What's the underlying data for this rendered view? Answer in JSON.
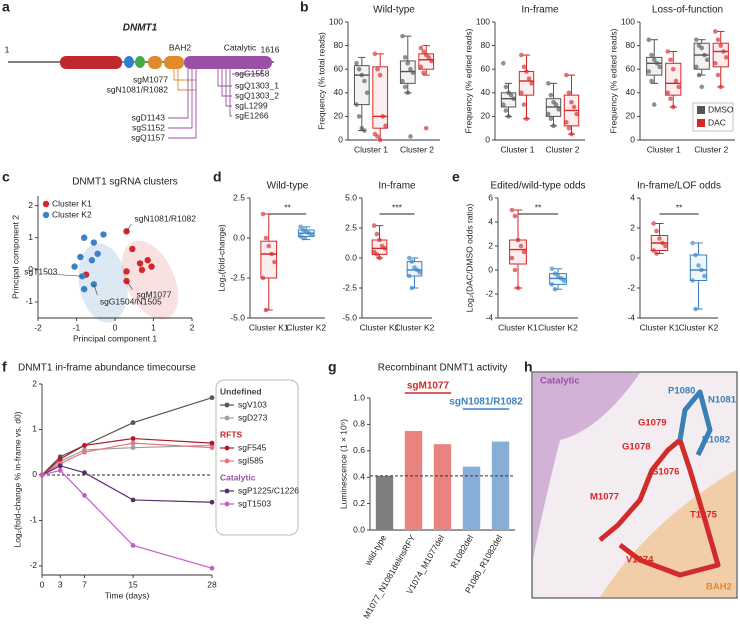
{
  "panel_labels": [
    "a",
    "b",
    "c",
    "d",
    "e",
    "f",
    "g",
    "h"
  ],
  "diagram": {
    "gene": "DNMT1",
    "start": 1,
    "end": 1616,
    "domains": [
      "BAH2",
      "Catalytic"
    ],
    "sgrnas_bah2": [
      "sgM1077",
      "sgN1081/R1082"
    ],
    "sgrnas_left": [
      "sgD1143",
      "sgS1152",
      "sgQ1157"
    ],
    "sgrnas_right": [
      "sgG1558",
      "sgQ1303_1",
      "sgQ1303_2",
      "sgL1299",
      "sgE1266"
    ]
  },
  "chart_data": [
    {
      "type": "box",
      "categories": [
        "Cluster 1",
        "Cluster 2"
      ],
      "series": [
        {
          "name": "DMSO",
          "color": "#555555"
        },
        {
          "name": "DAC",
          "color": "#d62728"
        }
      ],
      "legend": "lower right",
      "panels": [
        {
          "title": "Wild-type",
          "ylabel": "Frequency (% total reads)",
          "ylim": [
            0,
            100
          ],
          "yticks": [
            0,
            20,
            40,
            60,
            80,
            100
          ],
          "boxes": [
            [
              [
                8,
                30,
                55,
                63,
                70
              ],
              [
                40,
                48,
                58,
                67,
                88
              ]
            ],
            [
              [
                0,
                10,
                20,
                62,
                73
              ],
              [
                55,
                60,
                68,
                73,
                80
              ]
            ]
          ],
          "points": [
            [
              [
                65,
                60,
                55,
                50,
                40,
                30,
                20,
                10,
                8
              ],
              [
                88,
                70,
                65,
                60,
                57,
                50,
                45,
                40,
                3
              ]
            ],
            [
              [
                73,
                60,
                55,
                20,
                12,
                5,
                3,
                0
              ],
              [
                78,
                75,
                72,
                70,
                67,
                62,
                57,
                10
              ]
            ]
          ]
        },
        {
          "title": "In-frame",
          "ylabel": "Frequency (% edited reads)",
          "ylim": [
            0,
            100
          ],
          "yticks": [
            0,
            20,
            40,
            60,
            80,
            100
          ],
          "boxes": [
            [
              [
                20,
                28,
                35,
                40,
                48
              ],
              [
                12,
                20,
                28,
                35,
                48
              ]
            ],
            [
              [
                18,
                38,
                50,
                58,
                72
              ],
              [
                5,
                12,
                25,
                38,
                55
              ]
            ]
          ],
          "points": [
            [
              [
                65,
                45,
                40,
                38,
                35,
                30,
                25,
                20
              ],
              [
                48,
                38,
                32,
                30,
                26,
                22,
                18,
                12
              ]
            ],
            [
              [
                72,
                62,
                58,
                52,
                48,
                40,
                30,
                18
              ],
              [
                55,
                40,
                32,
                28,
                22,
                15,
                10,
                5
              ]
            ]
          ]
        },
        {
          "title": "Loss-of-function",
          "ylabel": "Frequency (% edited reads)",
          "ylim": [
            0,
            100
          ],
          "yticks": [
            0,
            20,
            40,
            60,
            80,
            100
          ],
          "boxes": [
            [
              [
                48,
                55,
                65,
                70,
                85
              ],
              [
                55,
                60,
                72,
                82,
                85
              ]
            ],
            [
              [
                28,
                38,
                48,
                65,
                75
              ],
              [
                45,
                62,
                75,
                82,
                92
              ]
            ]
          ],
          "points": [
            [
              [
                85,
                72,
                68,
                65,
                62,
                58,
                50,
                30
              ],
              [
                85,
                80,
                78,
                72,
                68,
                62,
                55,
                45
              ]
            ],
            [
              [
                75,
                68,
                60,
                50,
                45,
                40,
                35,
                28
              ],
              [
                92,
                85,
                80,
                75,
                70,
                65,
                55,
                45
              ]
            ]
          ]
        }
      ]
    },
    {
      "type": "scatter",
      "title": "DNMT1 sgRNA clusters",
      "xlabel": "Principal component 1",
      "ylabel": "Principal component 2",
      "xlim": [
        -2,
        2
      ],
      "xticks": [
        -2,
        -1,
        0,
        1,
        2
      ],
      "ylim": [
        -1.5,
        2.3
      ],
      "yticks": [
        -1,
        0,
        1,
        2
      ],
      "legend": "upper left",
      "series": [
        {
          "name": "Cluster K1",
          "color": "#d62728",
          "x": [
            0.3,
            0.45,
            0.65,
            0.85,
            0.95,
            0.7,
            0.3,
            0.3,
            -0.75
          ],
          "y": [
            1.2,
            0.65,
            0.2,
            0.3,
            0.1,
            0.0,
            -0.05,
            -0.35,
            -0.15
          ],
          "labels": [
            "sgN1081/R1082",
            null,
            null,
            null,
            null,
            null,
            null,
            "sgM1077",
            null
          ]
        },
        {
          "name": "Cluster K2",
          "color": "#3b82c4",
          "x": [
            -0.8,
            -0.55,
            -0.3,
            -0.45,
            -0.9,
            -0.6,
            -1.05,
            -0.85,
            -0.55,
            -0.8
          ],
          "y": [
            1.0,
            0.85,
            1.1,
            0.5,
            0.4,
            0.3,
            0.1,
            -0.2,
            -0.45,
            -0.6
          ],
          "labels": [
            null,
            null,
            null,
            null,
            null,
            null,
            null,
            "sgT1503",
            "sgG1504/N1505",
            null
          ]
        }
      ]
    },
    {
      "type": "box",
      "categories": [
        "Cluster K1",
        "Cluster K2"
      ],
      "colors": [
        "#d62728",
        "#3b82c4"
      ],
      "ylabel": "Log₂(fold-change)",
      "panels": [
        {
          "title": "Wild-type",
          "ylim": [
            -5,
            2.5
          ],
          "yticks": [
            {
              "value": -5,
              "label": "-5.0"
            },
            -2.5,
            {
              "value": 0,
              "label": "0.0"
            },
            2.5
          ],
          "sig": "**",
          "boxes": [
            [
              -4.5,
              -2.5,
              -1,
              -0.2,
              1.5
            ],
            [
              -0.1,
              0.1,
              0.3,
              0.5,
              0.7
            ]
          ],
          "points": [
            [
              1.5,
              0,
              -0.5,
              -1,
              -1.5,
              -2.5,
              -4.5
            ],
            [
              0.7,
              0.5,
              0.4,
              0.3,
              0.2,
              0.1,
              0
            ]
          ]
        },
        {
          "title": "In-frame",
          "ylim": [
            -5,
            5
          ],
          "yticks": [
            {
              "value": -5,
              "label": "-5.0"
            },
            -2.5,
            {
              "value": 0,
              "label": "0.0"
            },
            2.5,
            {
              "value": 5,
              "label": "5.0"
            }
          ],
          "sig": "***",
          "boxes": [
            [
              0,
              0.3,
              0.8,
              1.5,
              2.7
            ],
            [
              -2.5,
              -1.5,
              -1,
              -0.3,
              0
            ]
          ],
          "points": [
            [
              2.7,
              2,
              1.5,
              1,
              0.8,
              0.5,
              0.3,
              0
            ],
            [
              0,
              -0.3,
              -0.8,
              -1,
              -1.2,
              -1.5,
              -2.5
            ]
          ]
        }
      ]
    },
    {
      "type": "box",
      "categories": [
        "Cluster K1",
        "Cluster K2"
      ],
      "colors": [
        "#d62728",
        "#3b82c4"
      ],
      "ylabel": "Log₂(DAC/DMSO odds ratio)",
      "panels": [
        {
          "title": "Edited/wild-type odds",
          "ylim": [
            -4,
            6
          ],
          "yticks": [
            -4,
            -2,
            0,
            2,
            4,
            6
          ],
          "sig": "**",
          "boxes": [
            [
              -1.5,
              0.5,
              1.7,
              2.5,
              5
            ],
            [
              -1.6,
              -1.2,
              -0.7,
              -0.3,
              0.1
            ]
          ],
          "points": [
            [
              5,
              4.5,
              2.5,
              2,
              1.5,
              1,
              0,
              -1.5
            ],
            [
              0.1,
              -0.3,
              -0.5,
              -0.7,
              -0.9,
              -1.2,
              -1.6
            ]
          ]
        },
        {
          "title": "In-frame/LOF odds",
          "ylim": [
            -4,
            4
          ],
          "yticks": [
            -4,
            -2,
            0,
            2,
            4
          ],
          "sig": "**",
          "boxes": [
            [
              0.3,
              0.5,
              1,
              1.5,
              2.3
            ],
            [
              -3.4,
              -1.5,
              -0.8,
              0.2,
              1
            ]
          ],
          "points": [
            [
              2.3,
              1.8,
              1.3,
              1,
              0.8,
              0.5,
              0.3
            ],
            [
              1,
              0.2,
              -0.5,
              -0.8,
              -1.2,
              -1.5,
              -3.4
            ]
          ]
        }
      ]
    },
    {
      "type": "line",
      "title": "DNMT1 in-frame abundance timecourse",
      "xlabel": "Time (days)",
      "ylabel": "Log₂(fold-change % in-frame vs. d0)",
      "x": [
        0,
        3,
        7,
        15,
        28
      ],
      "xlim": [
        0,
        28
      ],
      "xticks": [
        0,
        3,
        7,
        15,
        28
      ],
      "ylim": [
        -2.2,
        2
      ],
      "yticks": [
        -2,
        -1,
        0,
        1,
        2
      ],
      "reference_line": 0,
      "groups": [
        {
          "title": "Undefined",
          "color": "#444444",
          "series": [
            {
              "name": "sgV103",
              "color": "#555555",
              "values": [
                0,
                0.4,
                0.65,
                1.15,
                1.7
              ]
            },
            {
              "name": "sgD273",
              "color": "#a0a0a0",
              "values": [
                0,
                0.3,
                0.55,
                0.6,
                0.65
              ]
            }
          ]
        },
        {
          "title": "RFTS",
          "color": "#c0282d",
          "series": [
            {
              "name": "sgF545",
              "color": "#b2182b",
              "values": [
                0,
                0.35,
                0.65,
                0.8,
                0.7
              ]
            },
            {
              "name": "sgI585",
              "color": "#e8737a",
              "values": [
                0,
                0.25,
                0.5,
                0.7,
                0.6
              ]
            }
          ]
        },
        {
          "title": "Catalytic",
          "color": "#9b4fa6",
          "series": [
            {
              "name": "sgP1225/C1226",
              "color": "#5a2d6b",
              "values": [
                0,
                0.2,
                0.05,
                -0.55,
                -0.6
              ]
            },
            {
              "name": "sgT1503",
              "color": "#c45fc9",
              "values": [
                0,
                0.1,
                -0.45,
                -1.55,
                -2.05
              ]
            }
          ]
        }
      ]
    },
    {
      "type": "bar",
      "title": "Recombinant DNMT1 activity",
      "ylabel": "Luminescence (1 × 10⁵)",
      "categories": [
        "wild-type",
        "M1077_N1081delinsRFY",
        "V1074_M1077del",
        "R1082del",
        "P1080_R1082del"
      ],
      "values": [
        0.41,
        0.75,
        0.65,
        0.48,
        0.67
      ],
      "colors": [
        "#7f7f7f",
        "#e8837f",
        "#e8837f",
        "#86aed6",
        "#86aed6"
      ],
      "ylim": [
        0,
        1
      ],
      "yticks": [
        {
          "value": 0,
          "label": "0.0"
        },
        0.2,
        0.4,
        0.6,
        0.8,
        {
          "value": 1,
          "label": "1.0"
        }
      ],
      "reference_line": 0.41,
      "annotations": [
        {
          "text": "sgM1077",
          "color": "#d62728"
        },
        {
          "text": "sgN1081/R1082",
          "color": "#3b82c4"
        }
      ]
    }
  ],
  "structure": {
    "labels": [
      "Catalytic",
      "P1080",
      "N1081",
      "G1079",
      "R1082",
      "G1078",
      "S1076",
      "M1077",
      "T1075",
      "V1074",
      "BAH2"
    ]
  }
}
